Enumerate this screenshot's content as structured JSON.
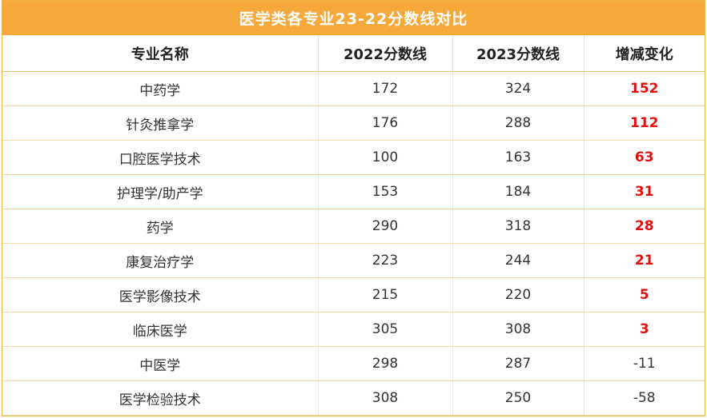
{
  "title": "医学类各专业23-22分数线对比",
  "headers": [
    "专业名称",
    "2022分数线",
    "2023分数线",
    "增减变化"
  ],
  "rows": [
    {
      "name": "中药学",
      "y2022": "172",
      "y2023": "324",
      "change": "152",
      "positive": true
    },
    {
      "name": "针灸推拿学",
      "y2022": "176",
      "y2023": "288",
      "change": "112",
      "positive": true
    },
    {
      "name": "口腔医学技术",
      "y2022": "100",
      "y2023": "163",
      "change": "63",
      "positive": true
    },
    {
      "name": "护理学/助产学",
      "y2022": "153",
      "y2023": "184",
      "change": "31",
      "positive": true
    },
    {
      "name": "药学",
      "y2022": "290",
      "y2023": "318",
      "change": "28",
      "positive": true
    },
    {
      "name": "康复治疗学",
      "y2022": "223",
      "y2023": "244",
      "change": "21",
      "positive": true
    },
    {
      "name": "医学影像技术",
      "y2022": "215",
      "y2023": "220",
      "change": "5",
      "positive": true
    },
    {
      "name": "临床医学",
      "y2022": "305",
      "y2023": "308",
      "change": "3",
      "positive": true
    },
    {
      "name": "中医学",
      "y2022": "298",
      "y2023": "287",
      "change": "-11",
      "positive": false
    },
    {
      "name": "医学检验技术",
      "y2022": "308",
      "y2023": "250",
      "change": "-58",
      "positive": false
    }
  ],
  "colors": {
    "header_bg": "#f5a93a",
    "positive_change": "#e01010",
    "border": "#f0c070"
  }
}
